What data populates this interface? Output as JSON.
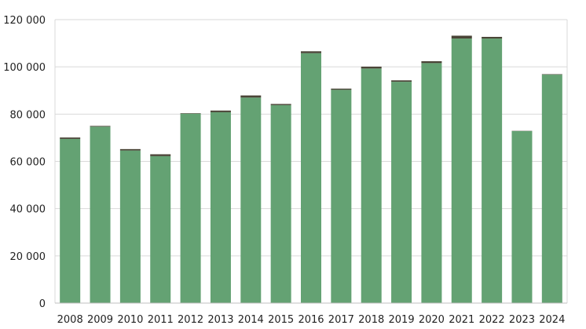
{
  "chart_data": {
    "type": "bar",
    "stacked": true,
    "categories": [
      "2008",
      "2009",
      "2010",
      "2011",
      "2012",
      "2013",
      "2014",
      "2015",
      "2016",
      "2017",
      "2018",
      "2019",
      "2020",
      "2021",
      "2022",
      "2023",
      "2024"
    ],
    "series": [
      {
        "values": [
          69500,
          74700,
          64600,
          62200,
          80200,
          80800,
          87000,
          83800,
          105800,
          90300,
          99300,
          93700,
          101600,
          112000,
          112000,
          72800,
          96700
        ]
      },
      {
        "values": [
          600,
          300,
          600,
          800,
          200,
          700,
          900,
          500,
          800,
          500,
          800,
          600,
          800,
          1200,
          700,
          100,
          200
        ]
      }
    ],
    "colors": [
      "#64a273",
      "#4a4537"
    ],
    "yticks": [
      "0",
      "20 000",
      "40 000",
      "60 000",
      "80 000",
      "100 000",
      "120 000"
    ],
    "ylim": [
      0,
      120000
    ],
    "grid": true,
    "legend": "none",
    "title": "",
    "xlabel": "",
    "ylabel": ""
  }
}
